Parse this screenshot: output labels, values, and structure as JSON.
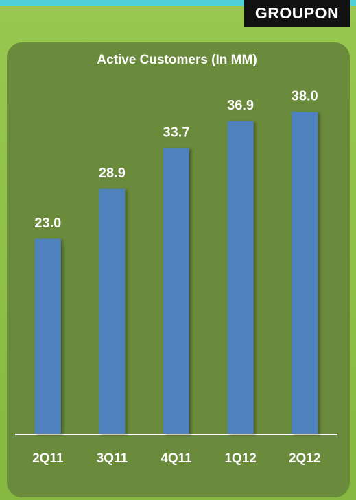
{
  "brand": "GROUPON",
  "chart_data": {
    "type": "bar",
    "title": "Active Customers (In MM)",
    "categories": [
      "2Q11",
      "3Q11",
      "4Q11",
      "1Q12",
      "2Q12"
    ],
    "values": [
      23.0,
      28.9,
      33.7,
      36.9,
      38.0
    ],
    "value_labels": [
      "23.0",
      "28.9",
      "33.7",
      "36.9",
      "38.0"
    ],
    "color": "#4f81bd"
  }
}
